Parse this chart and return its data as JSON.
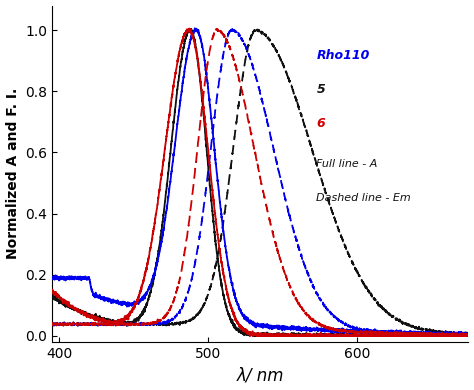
{
  "title": "",
  "xlabel": "λ/ nm",
  "ylabel": "Normalized A and F. I.",
  "xlim": [
    395,
    675
  ],
  "ylim": [
    -0.02,
    1.08
  ],
  "yticks": [
    0.0,
    0.2,
    0.4,
    0.6,
    0.8,
    1.0
  ],
  "xticks": [
    400,
    500,
    600
  ],
  "colors": {
    "blue": "#0000EE",
    "black": "#111111",
    "red": "#CC0000"
  },
  "background_color": "#ffffff",
  "figsize": [
    4.74,
    3.9
  ],
  "dpi": 100,
  "abs_peaks": {
    "blue": 492,
    "black": 488,
    "red": 487
  },
  "em_peaks": {
    "blue": 516,
    "black": 532,
    "red": 506
  },
  "abs_sigma_left": {
    "blue": 14,
    "black": 13,
    "red": 16
  },
  "abs_sigma_right": {
    "blue": 12,
    "black": 11,
    "red": 13
  },
  "em_sigma_left": {
    "blue": 14,
    "black": 15,
    "red": 13
  },
  "em_sigma_right": {
    "blue": 28,
    "black": 38,
    "red": 25
  },
  "abs_baseline": {
    "blue": 0.2,
    "black": 0.13,
    "red": 0.15
  },
  "abs_baseline_decay": {
    "blue": 80,
    "black": 40,
    "red": 30
  },
  "noise_seed": 42,
  "noise_scale": 0.006,
  "lw": 1.3
}
